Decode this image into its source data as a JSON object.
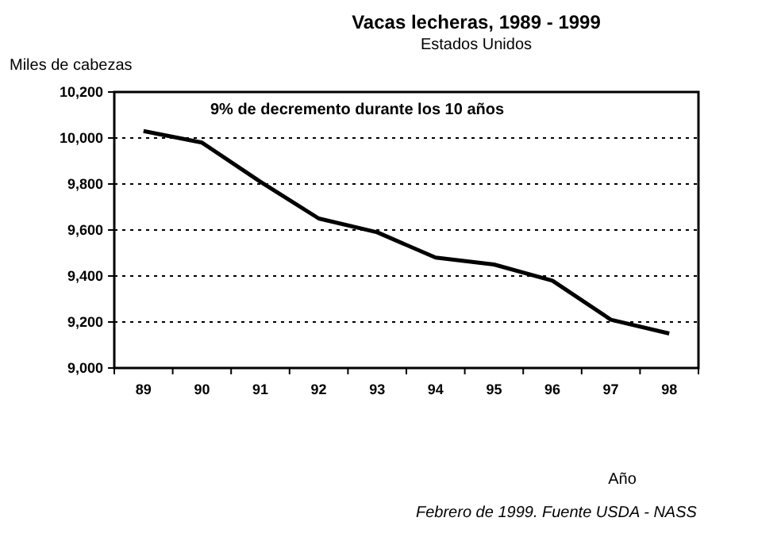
{
  "chart_data": {
    "type": "line",
    "title": "Vacas lecheras, 1989 - 1999",
    "subtitle": "Estados Unidos",
    "xlabel": "Año",
    "ylabel": "Miles de cabezas",
    "categories": [
      "89",
      "90",
      "91",
      "92",
      "93",
      "94",
      "95",
      "96",
      "97",
      "98"
    ],
    "series": [
      {
        "color": "#000000",
        "values": [
          10030,
          9980,
          9810,
          9650,
          9590,
          9480,
          9450,
          9380,
          9210,
          9150
        ]
      }
    ],
    "ylim": [
      9000,
      10200
    ],
    "yticks": [
      {
        "value": 9000,
        "label": "9,000"
      },
      {
        "value": 9200,
        "label": "9,200"
      },
      {
        "value": 9400,
        "label": "9,400"
      },
      {
        "value": 9600,
        "label": "9,600"
      },
      {
        "value": 9800,
        "label": "9,800"
      },
      {
        "value": 10000,
        "label": "10,000"
      },
      {
        "value": 10200,
        "label": "10,200"
      }
    ],
    "grid": "y",
    "marker": "none",
    "line_style": "solid",
    "annotations": [
      "9% de decremento durante los 10 años",
      "Febrero de 1999. Fuente USDA - NASS"
    ]
  }
}
